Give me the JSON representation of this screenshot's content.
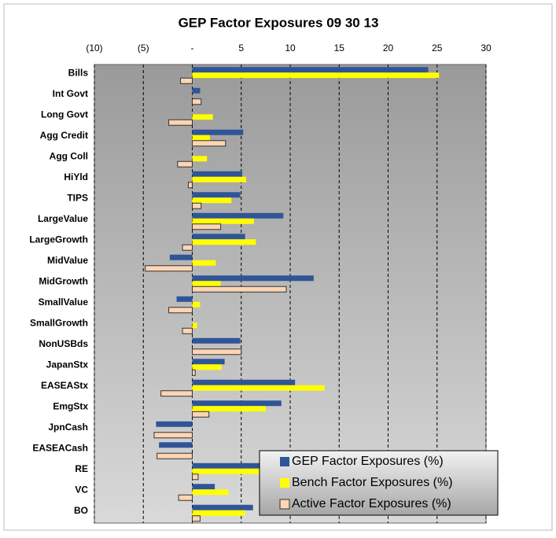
{
  "chart_data": {
    "type": "bar",
    "orientation": "horizontal",
    "title": "GEP Factor Exposures 09 30 13",
    "categories": [
      "Bills",
      "Int Govt",
      "Long Govt",
      "Agg Credit",
      "Agg Coll",
      "HiYld",
      "TIPS",
      "LargeValue",
      "LargeGrowth",
      "MidValue",
      "MidGrowth",
      "SmallValue",
      "SmallGrowth",
      "NonUSBds",
      "JapanStx",
      "EASEAStx",
      "EmgStx",
      "JpnCash",
      "EASEACash",
      "RE",
      "VC",
      "BO"
    ],
    "series": [
      {
        "name": "GEP Factor Exposures (%)",
        "color": "#2f5597",
        "values": [
          24.1,
          0.8,
          0,
          5.2,
          0,
          5.1,
          4.9,
          9.3,
          5.4,
          -2.3,
          12.4,
          -1.6,
          0,
          4.9,
          3.3,
          10.5,
          9.1,
          -3.7,
          -3.4,
          7.0,
          2.3,
          6.2
        ]
      },
      {
        "name": "Bench Factor Exposures (%)",
        "color": "#ffff00",
        "values": [
          25.2,
          0,
          2.1,
          1.8,
          1.5,
          5.5,
          4.0,
          6.3,
          6.5,
          2.4,
          2.9,
          0.8,
          0.5,
          0,
          3.0,
          13.5,
          7.5,
          0,
          0,
          6.9,
          3.7,
          5.4
        ]
      },
      {
        "name": "Active Factor Exposures (%)",
        "color": "#fcd5b4",
        "values": [
          -1.2,
          0.9,
          -2.4,
          3.4,
          -1.5,
          -0.4,
          0.9,
          2.9,
          -1.0,
          -4.8,
          9.6,
          -2.4,
          -1.0,
          5.0,
          0.3,
          -3.2,
          1.7,
          -3.9,
          -3.6,
          0.6,
          -1.4,
          0.8
        ]
      }
    ],
    "xlim": [
      -10,
      30
    ],
    "xticks": [
      {
        "value": -10,
        "label": "(10)"
      },
      {
        "value": -5,
        "label": "(5)"
      },
      {
        "value": 0,
        "label": "-"
      },
      5,
      10,
      15,
      20,
      25,
      30
    ],
    "grid": true,
    "legend": "lower right"
  }
}
